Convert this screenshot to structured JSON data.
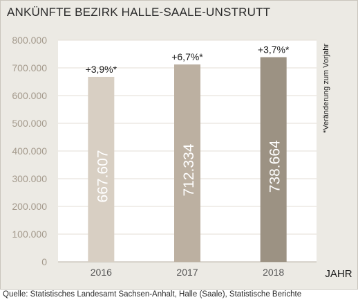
{
  "chart_data": {
    "type": "bar",
    "title": "ANKÜNFTE BEZIRK HALLE-SAALE-UNSTRUTT",
    "xlabel": "JAHR",
    "ylabel": "",
    "categories": [
      "2016",
      "2017",
      "2018"
    ],
    "values": [
      667607,
      712334,
      738664
    ],
    "value_labels": [
      "667.607",
      "712.334",
      "738.664"
    ],
    "change_labels": [
      "+3,9%*",
      "+6,7%*",
      "+3,7%*"
    ],
    "bar_colors": [
      "#d8cfc3",
      "#bcb0a1",
      "#9c9283"
    ],
    "ylim": [
      0,
      800000
    ],
    "yticks": [
      0,
      100000,
      200000,
      300000,
      400000,
      500000,
      600000,
      700000,
      800000
    ],
    "ytick_labels": [
      "0",
      "100.000",
      "200.000",
      "300.000",
      "400.000",
      "500.000",
      "600.000",
      "700.000",
      "800.000"
    ],
    "grid": true,
    "annotation": "*Veränderung zum Vorjahr",
    "source": "Quelle: Statistisches Landesamt Sachsen-Anhalt, Halle (Saale), Statistische Berichte"
  }
}
